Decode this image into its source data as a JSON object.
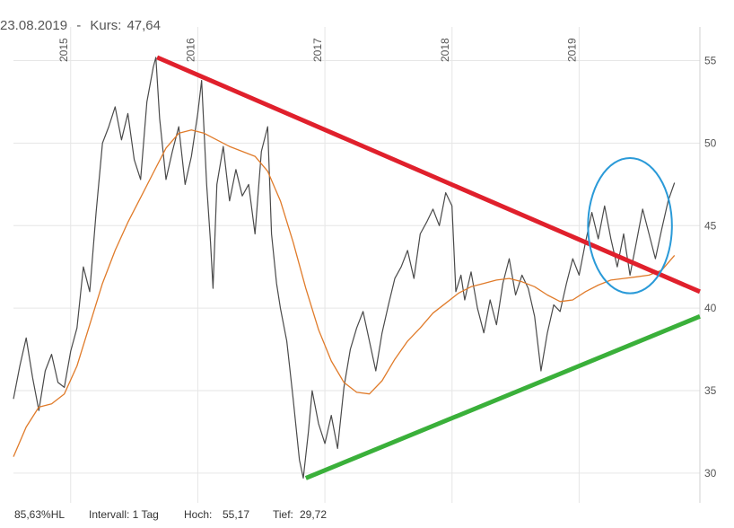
{
  "header": {
    "date": "23.08.2019",
    "sep": "-",
    "price_label": "Kurs:",
    "price_value": "47,64"
  },
  "footer": {
    "hl": "85,63%HL",
    "interval": "Intervall: 1 Tag",
    "high_label": "Hoch:",
    "high_value": "55,17",
    "low_label": "Tief:",
    "low_value": "29,72"
  },
  "chart_data": {
    "type": "line",
    "x_range": [
      2014.55,
      2019.95
    ],
    "ylim": [
      28.2,
      56.5
    ],
    "x_ticks": [
      {
        "value": 2015.0,
        "label": "2015"
      },
      {
        "value": 2016.0,
        "label": "2016"
      },
      {
        "value": 2017.0,
        "label": "2017"
      },
      {
        "value": 2018.0,
        "label": "2018"
      },
      {
        "value": 2019.0,
        "label": "2019"
      }
    ],
    "y_ticks": [
      30,
      35,
      40,
      45,
      50,
      55
    ],
    "grid": true,
    "colors": {
      "price": "#4a4a4a",
      "average": "#e07b2a",
      "resistance": "#e0202c",
      "support": "#3ab03a",
      "highlight": "#2a9ad8",
      "grid": "#e6e6e6"
    },
    "series": [
      {
        "key": "price",
        "points": [
          [
            2014.55,
            34.5
          ],
          [
            2014.6,
            36.5
          ],
          [
            2014.65,
            38.2
          ],
          [
            2014.7,
            35.8
          ],
          [
            2014.75,
            33.8
          ],
          [
            2014.8,
            36.2
          ],
          [
            2014.85,
            37.2
          ],
          [
            2014.9,
            35.5
          ],
          [
            2014.95,
            35.2
          ],
          [
            2015.0,
            37.4
          ],
          [
            2015.05,
            38.8
          ],
          [
            2015.1,
            42.5
          ],
          [
            2015.15,
            41.0
          ],
          [
            2015.2,
            45.8
          ],
          [
            2015.25,
            50.0
          ],
          [
            2015.3,
            51.0
          ],
          [
            2015.35,
            52.2
          ],
          [
            2015.4,
            50.2
          ],
          [
            2015.45,
            51.8
          ],
          [
            2015.5,
            49.0
          ],
          [
            2015.55,
            47.8
          ],
          [
            2015.6,
            52.5
          ],
          [
            2015.65,
            54.6
          ],
          [
            2015.67,
            55.2
          ],
          [
            2015.7,
            51.5
          ],
          [
            2015.75,
            47.8
          ],
          [
            2015.8,
            49.5
          ],
          [
            2015.85,
            51.0
          ],
          [
            2015.9,
            47.5
          ],
          [
            2015.95,
            49.2
          ],
          [
            2016.0,
            51.8
          ],
          [
            2016.03,
            53.8
          ],
          [
            2016.07,
            47.5
          ],
          [
            2016.1,
            44.0
          ],
          [
            2016.12,
            41.2
          ],
          [
            2016.15,
            47.5
          ],
          [
            2016.2,
            49.8
          ],
          [
            2016.25,
            46.5
          ],
          [
            2016.3,
            48.4
          ],
          [
            2016.35,
            46.8
          ],
          [
            2016.4,
            47.5
          ],
          [
            2016.45,
            44.5
          ],
          [
            2016.5,
            49.5
          ],
          [
            2016.55,
            51.0
          ],
          [
            2016.58,
            44.5
          ],
          [
            2016.62,
            41.5
          ],
          [
            2016.65,
            40.0
          ],
          [
            2016.7,
            38.0
          ],
          [
            2016.75,
            34.5
          ],
          [
            2016.8,
            30.8
          ],
          [
            2016.83,
            29.7
          ],
          [
            2016.87,
            32.5
          ],
          [
            2016.9,
            35.0
          ],
          [
            2016.95,
            33.0
          ],
          [
            2017.0,
            31.8
          ],
          [
            2017.05,
            33.5
          ],
          [
            2017.1,
            31.5
          ],
          [
            2017.15,
            35.2
          ],
          [
            2017.2,
            37.5
          ],
          [
            2017.25,
            38.8
          ],
          [
            2017.3,
            39.8
          ],
          [
            2017.35,
            38.0
          ],
          [
            2017.4,
            36.2
          ],
          [
            2017.45,
            38.5
          ],
          [
            2017.5,
            40.2
          ],
          [
            2017.55,
            41.8
          ],
          [
            2017.6,
            42.5
          ],
          [
            2017.65,
            43.5
          ],
          [
            2017.7,
            41.8
          ],
          [
            2017.75,
            44.5
          ],
          [
            2017.8,
            45.2
          ],
          [
            2017.85,
            46.0
          ],
          [
            2017.9,
            45.0
          ],
          [
            2017.95,
            47.0
          ],
          [
            2018.0,
            46.2
          ],
          [
            2018.03,
            41.0
          ],
          [
            2018.07,
            42.0
          ],
          [
            2018.1,
            40.5
          ],
          [
            2018.15,
            42.2
          ],
          [
            2018.2,
            40.0
          ],
          [
            2018.25,
            38.5
          ],
          [
            2018.3,
            40.5
          ],
          [
            2018.35,
            39.0
          ],
          [
            2018.4,
            41.5
          ],
          [
            2018.45,
            43.0
          ],
          [
            2018.5,
            40.8
          ],
          [
            2018.55,
            42.0
          ],
          [
            2018.6,
            41.2
          ],
          [
            2018.65,
            39.5
          ],
          [
            2018.7,
            36.2
          ],
          [
            2018.75,
            38.5
          ],
          [
            2018.8,
            40.2
          ],
          [
            2018.85,
            39.8
          ],
          [
            2018.9,
            41.5
          ],
          [
            2018.95,
            43.0
          ],
          [
            2019.0,
            42.0
          ],
          [
            2019.05,
            44.0
          ],
          [
            2019.1,
            45.8
          ],
          [
            2019.15,
            44.2
          ],
          [
            2019.2,
            46.2
          ],
          [
            2019.25,
            44.2
          ],
          [
            2019.3,
            42.5
          ],
          [
            2019.35,
            44.5
          ],
          [
            2019.4,
            42.0
          ],
          [
            2019.45,
            44.0
          ],
          [
            2019.5,
            46.0
          ],
          [
            2019.55,
            44.5
          ],
          [
            2019.6,
            43.0
          ],
          [
            2019.65,
            44.8
          ],
          [
            2019.7,
            46.5
          ],
          [
            2019.75,
            47.6
          ]
        ]
      },
      {
        "key": "average",
        "points": [
          [
            2014.55,
            31.0
          ],
          [
            2014.65,
            32.8
          ],
          [
            2014.75,
            34.0
          ],
          [
            2014.85,
            34.2
          ],
          [
            2014.95,
            34.8
          ],
          [
            2015.05,
            36.5
          ],
          [
            2015.15,
            39.0
          ],
          [
            2015.25,
            41.5
          ],
          [
            2015.35,
            43.5
          ],
          [
            2015.45,
            45.2
          ],
          [
            2015.55,
            46.7
          ],
          [
            2015.65,
            48.2
          ],
          [
            2015.75,
            49.7
          ],
          [
            2015.85,
            50.6
          ],
          [
            2015.95,
            50.8
          ],
          [
            2016.05,
            50.6
          ],
          [
            2016.15,
            50.2
          ],
          [
            2016.25,
            49.8
          ],
          [
            2016.35,
            49.5
          ],
          [
            2016.45,
            49.2
          ],
          [
            2016.55,
            48.3
          ],
          [
            2016.65,
            46.5
          ],
          [
            2016.75,
            44.0
          ],
          [
            2016.85,
            41.2
          ],
          [
            2016.95,
            38.7
          ],
          [
            2017.05,
            36.8
          ],
          [
            2017.15,
            35.5
          ],
          [
            2017.25,
            34.9
          ],
          [
            2017.35,
            34.8
          ],
          [
            2017.45,
            35.6
          ],
          [
            2017.55,
            36.9
          ],
          [
            2017.65,
            38.0
          ],
          [
            2017.75,
            38.8
          ],
          [
            2017.85,
            39.7
          ],
          [
            2017.95,
            40.3
          ],
          [
            2018.05,
            40.9
          ],
          [
            2018.15,
            41.3
          ],
          [
            2018.25,
            41.5
          ],
          [
            2018.35,
            41.7
          ],
          [
            2018.45,
            41.8
          ],
          [
            2018.55,
            41.6
          ],
          [
            2018.65,
            41.3
          ],
          [
            2018.75,
            40.8
          ],
          [
            2018.85,
            40.4
          ],
          [
            2018.95,
            40.5
          ],
          [
            2019.05,
            41.0
          ],
          [
            2019.15,
            41.4
          ],
          [
            2019.25,
            41.7
          ],
          [
            2019.35,
            41.8
          ],
          [
            2019.45,
            41.9
          ],
          [
            2019.55,
            42.0
          ],
          [
            2019.65,
            42.3
          ],
          [
            2019.75,
            43.2
          ]
        ]
      }
    ],
    "annotations": [
      {
        "type": "trendline",
        "name": "resistance",
        "from": [
          2015.68,
          55.2
        ],
        "to": [
          2019.95,
          41.0
        ]
      },
      {
        "type": "trendline",
        "name": "support",
        "from": [
          2016.85,
          29.7
        ],
        "to": [
          2019.95,
          39.5
        ]
      },
      {
        "type": "ellipse",
        "name": "highlight",
        "center": [
          2019.4,
          45.0
        ],
        "rx": 0.33,
        "ry": 4.1
      }
    ]
  }
}
